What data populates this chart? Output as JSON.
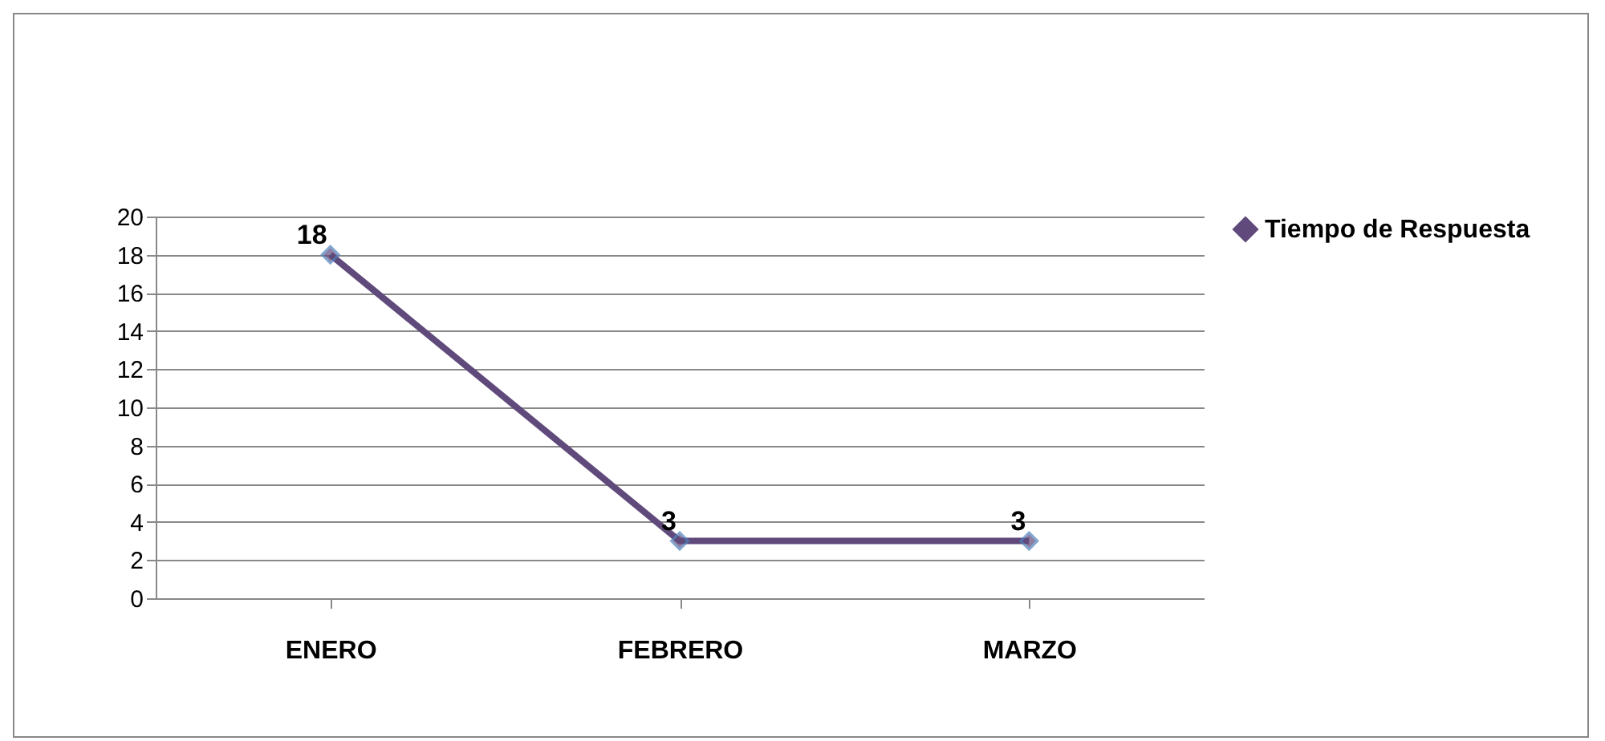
{
  "chart_data": {
    "type": "line",
    "categories": [
      "ENERO",
      "FEBRERO",
      "MARZO"
    ],
    "series": [
      {
        "name": "Tiempo de Respuesta",
        "color": "#604a7b",
        "values": [
          18,
          3,
          3
        ]
      }
    ],
    "ylim": [
      0,
      20
    ],
    "yticks": [
      0,
      2,
      4,
      6,
      8,
      10,
      12,
      14,
      16,
      18,
      20
    ],
    "grid": "y",
    "legend": "right",
    "marker": "diamond",
    "line_style": "solid",
    "data_labels": true
  }
}
